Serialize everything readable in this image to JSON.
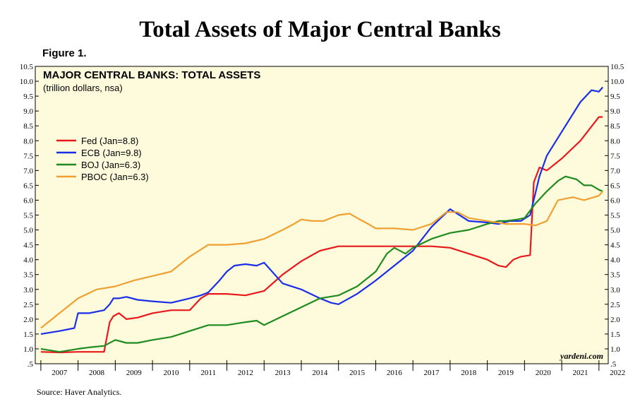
{
  "page": {
    "title": "Total Assets of Major Central Banks",
    "figure_label": "Figure 1.",
    "source": "Source: Haver Analytics.",
    "watermark": "yardeni.com"
  },
  "colors": {
    "plot_background": "#fdfbdc",
    "Fed": "#e8191d",
    "ECB": "#1a2ee8",
    "BOJ": "#1f8a1f",
    "PBOC": "#f0a030"
  },
  "chart_data": {
    "type": "line",
    "title": "MAJOR CENTRAL BANKS: TOTAL ASSETS",
    "subtitle": "(trillion dollars, nsa)",
    "xlabel": "",
    "ylabel": "",
    "xlim": [
      2006.85,
      2022.25
    ],
    "ylim": [
      0.5,
      10.5
    ],
    "y_ticks": [
      0.5,
      1.0,
      1.5,
      2.0,
      2.5,
      3.0,
      3.5,
      4.0,
      4.5,
      5.0,
      5.5,
      6.0,
      6.5,
      7.0,
      7.5,
      8.0,
      8.5,
      9.0,
      9.5,
      10.0,
      10.5
    ],
    "y_tick_labels": [
      ".5",
      "1.0",
      "1.5",
      "2.0",
      "2.5",
      "3.0",
      "3.5",
      "4.0",
      "4.5",
      "5.0",
      "5.5",
      "6.0",
      "6.5",
      "7.0",
      "7.5",
      "8.0",
      "8.5",
      "9.0",
      "9.5",
      "10.0",
      "10.5"
    ],
    "x_tick_labels": [
      "2007",
      "2008",
      "2009",
      "2010",
      "2011",
      "2012",
      "2013",
      "2014",
      "2015",
      "2016",
      "2017",
      "2018",
      "2019",
      "2020",
      "2021",
      "2022"
    ],
    "grid": false,
    "legend_position": "upper-left",
    "series": [
      {
        "name": "Fed (Jan=8.8)",
        "key": "Fed",
        "x": [
          2007.0,
          2007.5,
          2008.0,
          2008.2,
          2008.7,
          2008.85,
          2008.95,
          2009.1,
          2009.3,
          2009.6,
          2010.0,
          2010.5,
          2011.0,
          2011.3,
          2011.5,
          2012.0,
          2012.5,
          2013.0,
          2013.5,
          2014.0,
          2014.5,
          2015.0,
          2015.5,
          2016.0,
          2016.5,
          2017.0,
          2017.5,
          2018.0,
          2018.5,
          2019.0,
          2019.3,
          2019.5,
          2019.7,
          2019.9,
          2020.15,
          2020.25,
          2020.4,
          2020.6,
          2021.0,
          2021.5,
          2022.0,
          2022.1
        ],
        "y": [
          0.9,
          0.88,
          0.9,
          0.9,
          0.9,
          1.9,
          2.1,
          2.2,
          2.0,
          2.05,
          2.2,
          2.3,
          2.3,
          2.7,
          2.85,
          2.85,
          2.8,
          2.95,
          3.5,
          3.95,
          4.3,
          4.45,
          4.45,
          4.45,
          4.45,
          4.45,
          4.45,
          4.4,
          4.2,
          4.0,
          3.8,
          3.75,
          4.0,
          4.1,
          4.15,
          6.6,
          7.1,
          7.0,
          7.4,
          8.0,
          8.8,
          8.8
        ]
      },
      {
        "name": "ECB (Jan=9.8)",
        "key": "ECB",
        "x": [
          2007.0,
          2007.5,
          2007.9,
          2008.0,
          2008.3,
          2008.7,
          2008.85,
          2008.95,
          2009.1,
          2009.3,
          2009.6,
          2010.0,
          2010.5,
          2011.0,
          2011.3,
          2011.5,
          2011.8,
          2012.0,
          2012.2,
          2012.5,
          2012.8,
          2013.0,
          2013.5,
          2014.0,
          2014.5,
          2014.8,
          2015.0,
          2015.5,
          2016.0,
          2016.5,
          2017.0,
          2017.5,
          2018.0,
          2018.5,
          2019.0,
          2019.3,
          2019.6,
          2019.9,
          2020.15,
          2020.4,
          2020.6,
          2021.0,
          2021.5,
          2021.8,
          2022.0,
          2022.1
        ],
        "y": [
          1.5,
          1.6,
          1.7,
          2.2,
          2.2,
          2.3,
          2.5,
          2.7,
          2.7,
          2.75,
          2.65,
          2.6,
          2.55,
          2.7,
          2.8,
          2.9,
          3.3,
          3.6,
          3.8,
          3.85,
          3.8,
          3.9,
          3.2,
          3.0,
          2.7,
          2.55,
          2.5,
          2.85,
          3.3,
          3.8,
          4.3,
          5.1,
          5.7,
          5.3,
          5.25,
          5.2,
          5.3,
          5.3,
          5.5,
          6.8,
          7.5,
          8.3,
          9.3,
          9.7,
          9.65,
          9.8
        ]
      },
      {
        "name": "BOJ (Jan=6.3)",
        "key": "BOJ",
        "x": [
          2007.0,
          2007.5,
          2008.0,
          2008.3,
          2008.7,
          2009.0,
          2009.3,
          2009.6,
          2010.0,
          2010.5,
          2011.0,
          2011.5,
          2012.0,
          2012.5,
          2012.8,
          2013.0,
          2013.5,
          2014.0,
          2014.5,
          2015.0,
          2015.5,
          2016.0,
          2016.3,
          2016.5,
          2016.8,
          2017.0,
          2017.5,
          2018.0,
          2018.5,
          2019.0,
          2019.3,
          2019.5,
          2019.8,
          2020.0,
          2020.3,
          2020.6,
          2020.9,
          2021.1,
          2021.4,
          2021.6,
          2021.8,
          2022.0,
          2022.1
        ],
        "y": [
          1.0,
          0.9,
          1.0,
          1.05,
          1.1,
          1.3,
          1.2,
          1.2,
          1.3,
          1.4,
          1.6,
          1.8,
          1.8,
          1.9,
          1.95,
          1.8,
          2.1,
          2.4,
          2.7,
          2.8,
          3.1,
          3.6,
          4.2,
          4.4,
          4.2,
          4.4,
          4.7,
          4.9,
          5.0,
          5.2,
          5.3,
          5.3,
          5.35,
          5.4,
          5.9,
          6.3,
          6.65,
          6.8,
          6.7,
          6.5,
          6.5,
          6.35,
          6.3
        ]
      },
      {
        "name": "PBOC (Jan=6.3)",
        "key": "PBOC",
        "x": [
          2007.0,
          2007.5,
          2008.0,
          2008.5,
          2009.0,
          2009.5,
          2010.0,
          2010.5,
          2011.0,
          2011.5,
          2011.8,
          2012.0,
          2012.5,
          2013.0,
          2013.5,
          2013.8,
          2014.0,
          2014.3,
          2014.6,
          2015.0,
          2015.3,
          2015.5,
          2015.8,
          2016.0,
          2016.5,
          2017.0,
          2017.5,
          2017.9,
          2018.2,
          2018.5,
          2019.0,
          2019.5,
          2020.0,
          2020.3,
          2020.6,
          2020.9,
          2021.3,
          2021.6,
          2022.0,
          2022.1
        ],
        "y": [
          1.7,
          2.2,
          2.7,
          3.0,
          3.1,
          3.3,
          3.45,
          3.6,
          4.1,
          4.5,
          4.5,
          4.5,
          4.55,
          4.7,
          5.0,
          5.2,
          5.35,
          5.3,
          5.3,
          5.5,
          5.55,
          5.4,
          5.2,
          5.05,
          5.05,
          5.0,
          5.2,
          5.6,
          5.6,
          5.4,
          5.3,
          5.2,
          5.2,
          5.15,
          5.3,
          6.0,
          6.1,
          6.0,
          6.15,
          6.3
        ]
      }
    ]
  }
}
